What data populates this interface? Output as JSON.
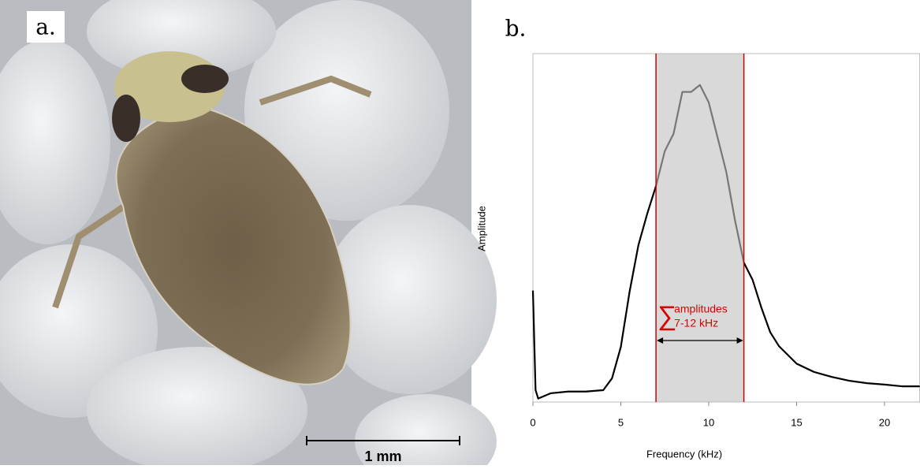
{
  "photo": {
    "label": "a.",
    "scale_bar": "1 mm"
  },
  "chart_data": {
    "type": "line",
    "panel_label": "b.",
    "x_label": "Frequency (kHz)",
    "y_label": "Amplitude",
    "xlim": [
      0,
      22
    ],
    "xticks": [
      0,
      5,
      10,
      15,
      20
    ],
    "ylim": [
      0,
      100
    ],
    "x": [
      0,
      0.15,
      0.3,
      1,
      2,
      3,
      4,
      4.5,
      5,
      5.5,
      6,
      6.5,
      7,
      7.5,
      8,
      8.5,
      9,
      9.5,
      10,
      10.5,
      11,
      11.5,
      12,
      12.5,
      13,
      13.5,
      14,
      15,
      16,
      17,
      18,
      19,
      20,
      21,
      22
    ],
    "series": [
      {
        "color": "#000000",
        "values": [
          32,
          3.4,
          1,
          2.5,
          3,
          3,
          3.4,
          6.8,
          15.8,
          31.7,
          45,
          54,
          62,
          null,
          null,
          null,
          null,
          null,
          null,
          null,
          null,
          null,
          40,
          35,
          27,
          20,
          16,
          11,
          8.6,
          7.2,
          6.1,
          5.4,
          5,
          4.5,
          4.5
        ]
      },
      {
        "color": "#777777",
        "values": [
          null,
          null,
          null,
          null,
          null,
          null,
          null,
          null,
          null,
          null,
          null,
          null,
          62,
          72,
          77,
          89,
          89,
          91,
          86,
          76,
          66,
          52,
          40,
          null,
          null,
          null,
          null,
          null,
          null,
          null,
          null,
          null,
          null,
          null,
          null
        ]
      }
    ],
    "band": {
      "from": 7,
      "to": 12,
      "color": "#d9d9d9",
      "edge_color": "#cc0000"
    },
    "annotation": {
      "symbol": "∑",
      "lines": [
        "amplitudes",
        "7-12 kHz"
      ],
      "color": "#dd0000"
    }
  }
}
